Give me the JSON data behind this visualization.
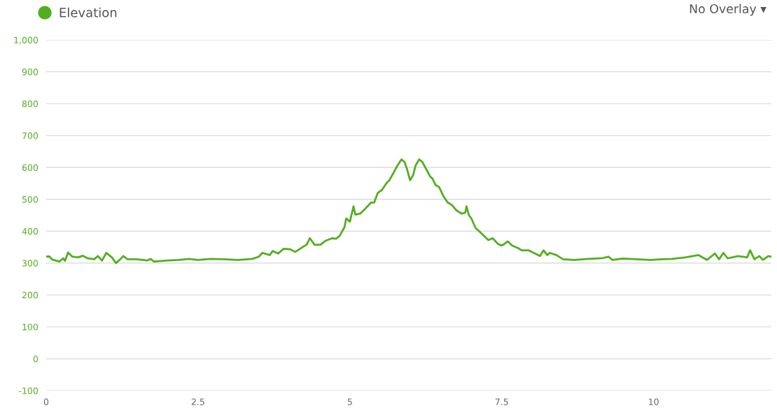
{
  "chart_data": {
    "type": "line",
    "legend": "top left",
    "grid": "y",
    "marker": "none",
    "line_style": "solid",
    "annotations": [
      "No Overlay ▾"
    ],
    "xlim": [
      0,
      11.94
    ],
    "xticks": [
      0,
      2.5,
      5,
      7.5,
      10
    ],
    "ylim": [
      -100,
      1000
    ],
    "yticks": [
      -100,
      0,
      100,
      200,
      300,
      400,
      500,
      600,
      700,
      800,
      900,
      {
        "value": 1000,
        "label": "1,000"
      }
    ],
    "series": [
      {
        "name": "Elevation",
        "color": "#52ae1f",
        "x": [
          0,
          0.05,
          0.1,
          0.22,
          0.28,
          0.31,
          0.36,
          0.43,
          0.53,
          0.6,
          0.68,
          0.79,
          0.85,
          0.92,
          0.99,
          1.08,
          1.15,
          1.22,
          1.27,
          1.34,
          1.49,
          1.66,
          1.72,
          1.77,
          2.0,
          2.18,
          2.35,
          2.5,
          2.7,
          2.93,
          3.16,
          3.39,
          3.5,
          3.56,
          3.68,
          3.73,
          3.82,
          3.91,
          4.02,
          4.1,
          4.22,
          4.29,
          4.34,
          4.42,
          4.52,
          4.6,
          4.71,
          4.77,
          4.83,
          4.91,
          4.94,
          5.0,
          5.06,
          5.09,
          5.17,
          5.25,
          5.35,
          5.4,
          5.46,
          5.53,
          5.6,
          5.65,
          5.71,
          5.78,
          5.85,
          5.9,
          5.94,
          5.99,
          6.04,
          6.08,
          6.14,
          6.19,
          6.27,
          6.32,
          6.36,
          6.41,
          6.47,
          6.54,
          6.61,
          6.68,
          6.75,
          6.84,
          6.9,
          6.92,
          6.96,
          7.0,
          7.07,
          7.14,
          7.21,
          7.28,
          7.35,
          7.44,
          7.49,
          7.53,
          7.6,
          7.67,
          7.76,
          7.83,
          7.94,
          8.05,
          8.13,
          8.19,
          8.25,
          8.29,
          8.4,
          8.51,
          8.69,
          8.92,
          9.15,
          9.26,
          9.32,
          9.49,
          9.72,
          9.95,
          10.13,
          10.3,
          10.53,
          10.74,
          10.88,
          11.01,
          11.08,
          11.15,
          11.22,
          11.39,
          11.54,
          11.59,
          11.66,
          11.74,
          11.8,
          11.89,
          11.94
        ],
        "values": [
          320,
          321,
          311,
          305,
          315,
          307,
          333,
          320,
          318,
          323,
          315,
          312,
          322,
          308,
          332,
          318,
          300,
          312,
          322,
          312,
          312,
          308,
          313,
          305,
          308,
          310,
          313,
          310,
          313,
          312,
          310,
          313,
          320,
          332,
          325,
          338,
          330,
          345,
          343,
          335,
          350,
          358,
          378,
          357,
          358,
          370,
          378,
          376,
          385,
          412,
          440,
          430,
          478,
          452,
          455,
          470,
          490,
          490,
          520,
          530,
          550,
          560,
          580,
          605,
          625,
          617,
          595,
          560,
          575,
          605,
          625,
          618,
          590,
          572,
          565,
          545,
          538,
          510,
          490,
          482,
          466,
          455,
          458,
          478,
          450,
          440,
          410,
          398,
          385,
          372,
          378,
          360,
          355,
          358,
          368,
          355,
          348,
          340,
          340,
          330,
          322,
          340,
          325,
          332,
          325,
          312,
          310,
          313,
          315,
          320,
          310,
          314,
          312,
          310,
          312,
          313,
          318,
          325,
          310,
          330,
          312,
          332,
          315,
          322,
          318,
          340,
          312,
          322,
          310,
          322,
          320
        ]
      }
    ]
  }
}
